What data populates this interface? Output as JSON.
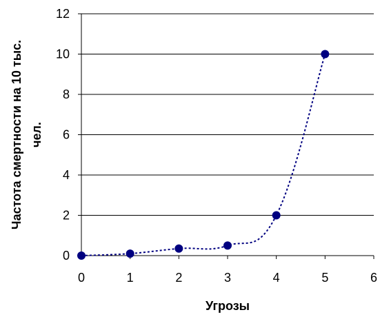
{
  "chart_data": {
    "type": "scatter",
    "title": "",
    "xlabel": "Угрозы",
    "ylabel_lines": [
      "Частота смертности на 10 тыс.",
      "чел."
    ],
    "xlim": [
      0,
      6
    ],
    "ylim": [
      0,
      12
    ],
    "x_ticks": [
      0,
      1,
      2,
      3,
      4,
      5,
      6
    ],
    "y_ticks": [
      0,
      2,
      4,
      6,
      8,
      10,
      12
    ],
    "grid": "horizontal",
    "line_style": "dotted smoothed",
    "series": [
      {
        "x": [
          0,
          1,
          2,
          3,
          4,
          5
        ],
        "y": [
          0,
          0.1,
          0.35,
          0.5,
          2,
          10
        ]
      }
    ],
    "colors": {
      "marker": "#000080",
      "line": "#000080",
      "grid": "#000000",
      "axis": "#000000"
    }
  }
}
